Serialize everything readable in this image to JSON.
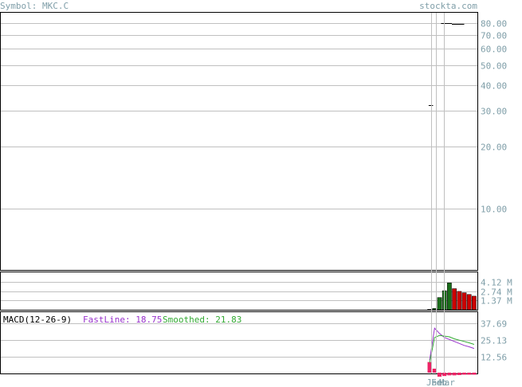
{
  "header": {
    "symbol_label": "Symbol: MKC.C",
    "site": "stockta.com"
  },
  "colors": {
    "text_muted": "#7f9ea8",
    "grid": "#c0c0c0",
    "frame": "#000000",
    "vol_up": "#1a6e1a",
    "vol_down": "#cc0000",
    "fastline": "#9933cc",
    "smoothed": "#33aa33",
    "hist": "#ee2266"
  },
  "chart_data": [
    {
      "type": "candlestick",
      "title": "",
      "y_scale": "log",
      "y_tick_labels": [
        "80.00",
        "70.00",
        "60.00",
        "50.00",
        "40.00",
        "30.00",
        "20.00",
        "10.00"
      ],
      "ylim": [
        5,
        90
      ],
      "price_segments": [
        {
          "x": [
            0.3,
            1.2
          ],
          "y": 31.8
        },
        {
          "x": [
            2.8,
            5.0
          ],
          "y": 80.0
        },
        {
          "x": [
            5.0,
            7.5
          ],
          "y": 79.2
        }
      ],
      "x_labels": [
        "Jan",
        "Feb",
        "Mar"
      ]
    },
    {
      "type": "bar",
      "title": "",
      "y_tick_labels": [
        "4.12 M",
        "2.74 M",
        "1.37 M"
      ],
      "ylim": [
        0,
        5.5
      ],
      "series": [
        {
          "values": [
            0.05,
            0.2,
            1.8,
            2.8,
            3.95,
            3.1,
            2.7,
            2.5,
            2.25,
            2.0
          ],
          "colors": [
            "up",
            "up",
            "up",
            "up",
            "up",
            "down",
            "down",
            "down",
            "down",
            "down"
          ]
        }
      ]
    },
    {
      "type": "line",
      "title": "MACD(12-26-9)",
      "y_tick_labels": [
        "37.69",
        "25.13",
        "12.56"
      ],
      "ylim": [
        0,
        46
      ],
      "legend": {
        "fast_label": "FastLine: 18.75",
        "smooth_label": "Smoothed: 21.83"
      },
      "series": [
        {
          "name": "FastLine",
          "values": [
            10,
            34,
            30,
            27,
            25.5,
            24,
            22.5,
            21,
            20,
            18.75
          ]
        },
        {
          "name": "Smoothed",
          "values": [
            8,
            27,
            28.5,
            28,
            27.5,
            26,
            25,
            24,
            23,
            21.83
          ]
        }
      ],
      "histogram": [
        8,
        3,
        -3,
        -2.5,
        -2,
        -2,
        -1.8,
        -1.5,
        -1.5,
        -1.5
      ]
    }
  ]
}
